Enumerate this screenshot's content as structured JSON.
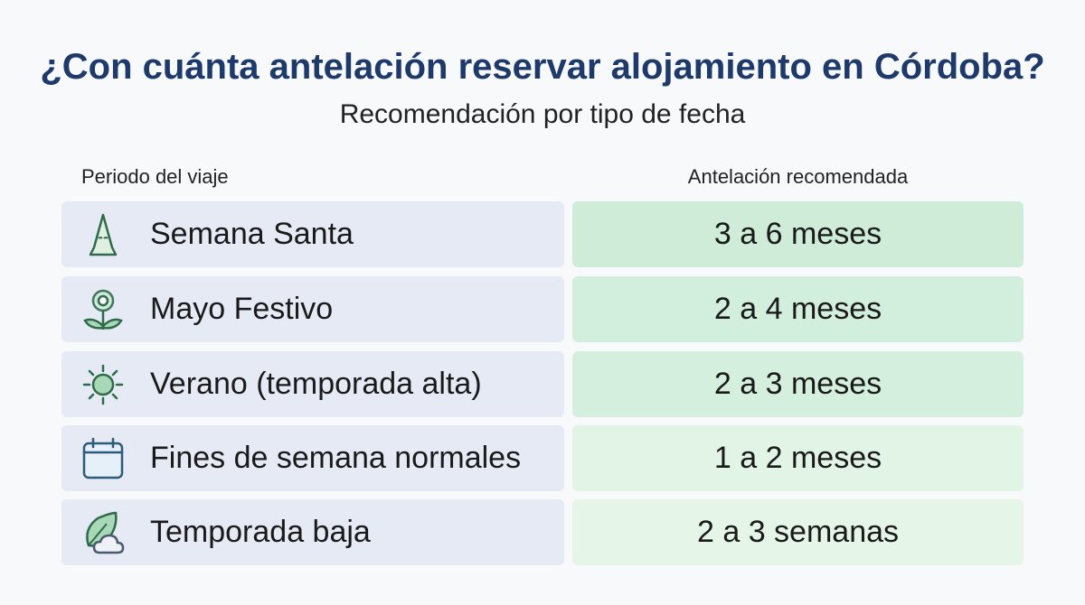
{
  "title": "¿Con cuánta antelación reservar alojamiento en Córdoba?",
  "subtitle": "Recomendación por tipo de fecha",
  "table": {
    "headers": [
      "Periodo del viaje",
      "Antelación recomendada"
    ],
    "rows": [
      [
        "Semana Santa",
        "3 a 6 meses"
      ],
      [
        "Mayo Festivo",
        "2 a 4 meses"
      ],
      [
        "Verano (temporada alta)",
        "2 a 3 meses"
      ],
      [
        "Fines de semana normales",
        "1 a 2 meses"
      ],
      [
        "Temporada baja",
        "2 a 3 semanas"
      ]
    ]
  }
}
